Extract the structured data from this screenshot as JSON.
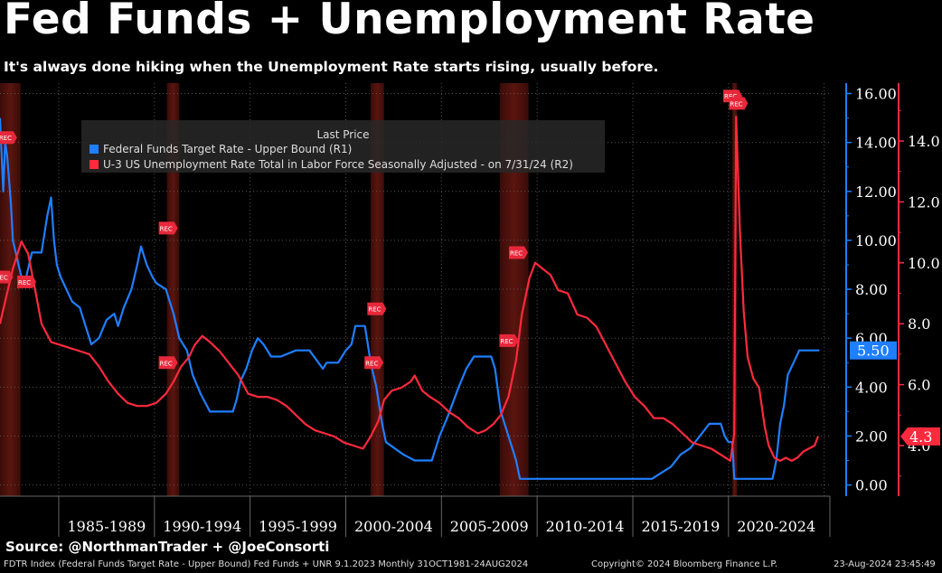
{
  "title": "Fed Funds + Unemployment Rate",
  "subtitle": "It's always done hiking when the Unemployment Rate starts rising, usually before.",
  "source": "Source: @NorthmanTrader + @JoeConsorti",
  "footer_left": "FDTR Index (Federal Funds Target Rate - Upper Bound) Fed Funds + UNR 9.1.2023  Monthly 31OCT1981-24AUG2024",
  "footer_mid": "Copyright© 2024 Bloomberg Finance L.P.",
  "footer_right": "23-Aug-2024 23:45:49",
  "legend": {
    "title": "Last Price",
    "items": [
      {
        "label": "Federal Funds Target Rate - Upper Bound  (R1)",
        "color": "#1f7fff"
      },
      {
        "label": "U-3 US Unemployment Rate Total in Labor Force Seasonally Adjusted -  on 7/31/24  (R2)",
        "color": "#ff2a3c"
      }
    ]
  },
  "colors": {
    "fed": "#1f7fff",
    "unemployment": "#ff2a3c",
    "recession": "#5a1510",
    "background": "#000000",
    "grid": "#555555"
  },
  "rec_label": "REC",
  "chart_data": {
    "type": "line",
    "x_labels": [
      "1985-1989",
      "1990-1994",
      "1995-1999",
      "2000-2004",
      "2005-2009",
      "2010-2014",
      "2015-2019",
      "2020-2024"
    ],
    "xlim": [
      1981.83,
      2025.2
    ],
    "recessions": [
      [
        1981.5,
        1982.9
      ],
      [
        1990.55,
        1991.2
      ],
      [
        2001.2,
        2001.9
      ],
      [
        2007.95,
        2009.45
      ],
      [
        2020.1,
        2020.35
      ]
    ],
    "y_axis_right1": {
      "ticks": [
        "16.00",
        "14.00",
        "12.00",
        "10.00",
        "8.00",
        "6.00",
        "4.00",
        "2.00",
        "0.00"
      ],
      "ylim": [
        -1.2,
        16.0
      ]
    },
    "y_axis_right2": {
      "ticks": [
        "14.0",
        "12.0",
        "10.0",
        "8.0",
        "6.0",
        "4.0"
      ],
      "ylim": [
        2.2,
        15.5
      ]
    },
    "last_values": {
      "fed": "5.50",
      "unemployment": "4.3"
    },
    "series": [
      {
        "name": "Federal Funds Target Rate - Upper Bound",
        "axis": "R1",
        "x": [
          1981.83,
          1982.0,
          1982.1,
          1982.2,
          1982.4,
          1982.5,
          1982.65,
          1982.8,
          1982.95,
          1983.2,
          1983.5,
          1983.8,
          1984.0,
          1984.3,
          1984.5,
          1984.65,
          1984.8,
          1985.0,
          1985.3,
          1985.6,
          1986.0,
          1986.3,
          1986.6,
          1987.0,
          1987.4,
          1987.8,
          1988.0,
          1988.3,
          1988.7,
          1989.0,
          1989.2,
          1989.5,
          1989.8,
          1990.0,
          1990.5,
          1990.9,
          1991.2,
          1991.6,
          1991.9,
          1992.3,
          1992.8,
          1993.5,
          1994.0,
          1994.2,
          1994.4,
          1994.7,
          1995.0,
          1995.3,
          1995.6,
          1996.0,
          1996.5,
          1997.3,
          1998.0,
          1998.7,
          1998.9,
          1999.5,
          1999.9,
          2000.2,
          2000.4,
          2000.9,
          2001.0,
          2001.2,
          2001.5,
          2001.8,
          2002.0,
          2002.9,
          2003.5,
          2004.4,
          2004.8,
          2005.2,
          2005.8,
          2006.2,
          2006.6,
          2007.5,
          2007.7,
          2008.0,
          2008.3,
          2008.8,
          2009.0,
          2015.9,
          2016.9,
          2017.4,
          2017.9,
          2018.4,
          2018.9,
          2019.5,
          2019.7,
          2019.9,
          2020.1,
          2020.2,
          2022.2,
          2022.4,
          2022.6,
          2022.8,
          2023.0,
          2023.3,
          2023.6,
          2024.65
        ],
        "values": [
          15.0,
          12.0,
          14.0,
          13.5,
          11.5,
          10.0,
          9.5,
          9.0,
          8.5,
          8.5,
          9.5,
          9.5,
          9.5,
          11.0,
          11.75,
          10.0,
          9.0,
          8.5,
          8.0,
          7.5,
          7.25,
          6.5,
          5.75,
          6.0,
          6.75,
          7.0,
          6.5,
          7.25,
          8.0,
          9.0,
          9.75,
          9.0,
          8.5,
          8.25,
          8.0,
          7.0,
          6.0,
          5.5,
          4.5,
          3.75,
          3.0,
          3.0,
          3.0,
          3.5,
          4.25,
          4.75,
          5.5,
          6.0,
          5.75,
          5.25,
          5.25,
          5.5,
          5.5,
          4.75,
          5.0,
          5.0,
          5.5,
          5.75,
          6.5,
          6.5,
          6.0,
          5.0,
          4.0,
          2.5,
          1.75,
          1.25,
          1.0,
          1.0,
          2.0,
          2.75,
          4.0,
          4.75,
          5.25,
          5.25,
          4.75,
          3.0,
          2.25,
          1.0,
          0.25,
          0.25,
          0.75,
          1.25,
          1.5,
          2.0,
          2.5,
          2.5,
          2.0,
          1.75,
          1.75,
          0.25,
          0.25,
          1.0,
          2.5,
          3.25,
          4.5,
          5.0,
          5.5,
          5.5
        ]
      },
      {
        "name": "U-3 US Unemployment Rate Total in Labor Force Seasonally Adjusted",
        "axis": "R2",
        "x": [
          1981.83,
          1982.2,
          1982.5,
          1982.8,
          1982.95,
          1983.3,
          1983.7,
          1984.0,
          1984.5,
          1985.0,
          1985.5,
          1986.0,
          1986.5,
          1987.0,
          1987.5,
          1988.0,
          1988.5,
          1989.0,
          1989.5,
          1990.0,
          1990.5,
          1990.9,
          1991.3,
          1991.7,
          1992.0,
          1992.4,
          1992.8,
          1993.3,
          1993.8,
          1994.3,
          1994.8,
          1995.3,
          1995.8,
          1996.3,
          1996.8,
          1997.3,
          1997.8,
          1998.3,
          1998.8,
          1999.3,
          1999.8,
          2000.3,
          2000.8,
          2001.2,
          2001.6,
          2001.9,
          2002.3,
          2002.8,
          2003.3,
          2003.5,
          2003.9,
          2004.3,
          2004.8,
          2005.3,
          2005.8,
          2006.3,
          2006.8,
          2007.2,
          2007.6,
          2008.0,
          2008.4,
          2008.8,
          2009.1,
          2009.5,
          2009.8,
          2010.2,
          2010.6,
          2011.0,
          2011.5,
          2012.0,
          2012.5,
          2013.0,
          2013.5,
          2014.0,
          2014.5,
          2015.0,
          2015.5,
          2016.0,
          2016.5,
          2017.0,
          2017.5,
          2018.0,
          2018.5,
          2019.0,
          2019.5,
          2020.0,
          2020.2,
          2020.3,
          2020.5,
          2020.7,
          2020.9,
          2021.2,
          2021.5,
          2021.8,
          2022.0,
          2022.3,
          2022.6,
          2022.9,
          2023.2,
          2023.5,
          2023.8,
          2024.1,
          2024.4,
          2024.58
        ],
        "values": [
          8.0,
          9.0,
          9.8,
          10.4,
          10.7,
          10.3,
          9.0,
          8.0,
          7.4,
          7.3,
          7.2,
          7.1,
          7.0,
          6.6,
          6.1,
          5.7,
          5.4,
          5.3,
          5.3,
          5.4,
          5.7,
          6.1,
          6.6,
          6.9,
          7.3,
          7.6,
          7.4,
          7.1,
          6.7,
          6.3,
          5.7,
          5.6,
          5.6,
          5.5,
          5.3,
          5.0,
          4.7,
          4.5,
          4.4,
          4.3,
          4.1,
          4.0,
          3.9,
          4.3,
          4.8,
          5.5,
          5.8,
          5.9,
          6.1,
          6.3,
          5.8,
          5.6,
          5.4,
          5.1,
          4.9,
          4.6,
          4.4,
          4.5,
          4.7,
          5.0,
          5.6,
          6.8,
          8.3,
          9.5,
          10.0,
          9.8,
          9.6,
          9.1,
          9.0,
          8.3,
          8.2,
          7.9,
          7.3,
          6.7,
          6.1,
          5.6,
          5.3,
          4.9,
          4.9,
          4.7,
          4.4,
          4.1,
          4.0,
          3.9,
          3.7,
          3.5,
          4.4,
          14.8,
          11.0,
          8.4,
          6.9,
          6.2,
          5.9,
          4.6,
          4.0,
          3.6,
          3.5,
          3.6,
          3.5,
          3.6,
          3.8,
          3.9,
          4.0,
          4.3
        ]
      }
    ]
  }
}
